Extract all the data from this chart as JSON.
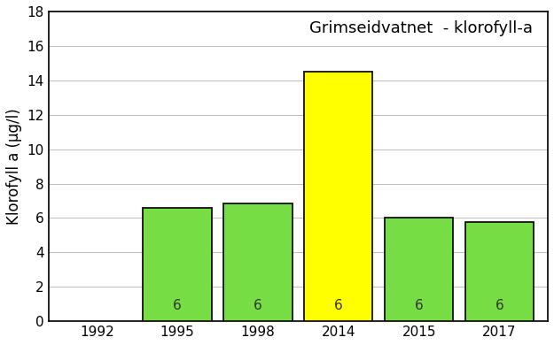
{
  "title": "Grimseidvatnet  - klorofyll-a",
  "ylabel": "Klorofyll a (µg/l)",
  "years": [
    1992,
    1995,
    1998,
    2014,
    2015,
    2017
  ],
  "values": [
    null,
    6.6,
    6.85,
    14.5,
    6.0,
    5.75
  ],
  "bar_colors": [
    "none",
    "#77dd44",
    "#77dd44",
    "#ffff00",
    "#77dd44",
    "#77dd44"
  ],
  "bar_edgecolors": [
    "none",
    "#111111",
    "#111111",
    "#111111",
    "#111111",
    "#111111"
  ],
  "bar_labels": [
    null,
    "6",
    "6",
    "6",
    "6",
    "6"
  ],
  "ylim": [
    0,
    18
  ],
  "yticks": [
    0,
    2,
    4,
    6,
    8,
    10,
    12,
    14,
    16,
    18
  ],
  "bar_width": 0.85,
  "label_fontsize": 11,
  "title_fontsize": 13,
  "ylabel_fontsize": 12,
  "tick_fontsize": 11,
  "background_color": "#ffffff",
  "grid_color": "#bbbbbb"
}
